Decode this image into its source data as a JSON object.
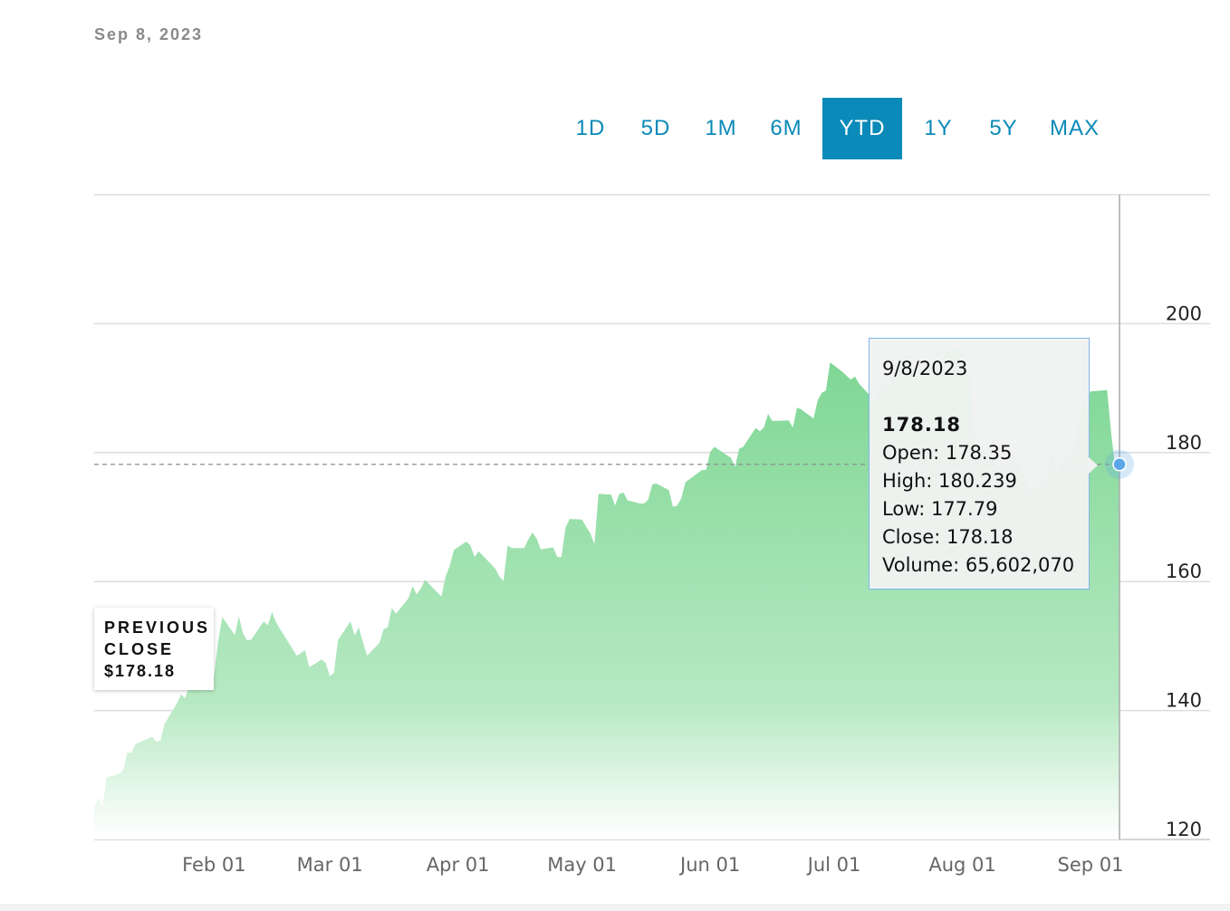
{
  "header": {
    "date": "Sep 8, 2023"
  },
  "ranges": [
    {
      "label": "1D",
      "active": false
    },
    {
      "label": "5D",
      "active": false
    },
    {
      "label": "1M",
      "active": false
    },
    {
      "label": "6M",
      "active": false
    },
    {
      "label": "YTD",
      "active": true
    },
    {
      "label": "1Y",
      "active": false
    },
    {
      "label": "5Y",
      "active": false
    },
    {
      "label": "MAX",
      "active": false
    }
  ],
  "tooltip": {
    "date": "9/8/2023",
    "price": "178.18",
    "open": "Open: 178.35",
    "high": "High: 180.239",
    "low": "Low: 177.79",
    "close": "Close: 178.18",
    "volume": "Volume: 65,602,070"
  },
  "previous_close": {
    "line1": "PREVIOUS",
    "line2": "CLOSE",
    "value": "$178.18"
  },
  "colors": {
    "accent": "#0a8ab8",
    "area_top": "#7dd693",
    "area_bottom": "#ffffff",
    "marker": "#5aa6e8"
  },
  "chart_data": {
    "type": "area",
    "ylim": [
      120,
      220
    ],
    "y_ticks": [
      120,
      140,
      160,
      180,
      200
    ],
    "x_ticks": [
      {
        "label": "Feb 01",
        "date": "2023-02-01"
      },
      {
        "label": "Mar 01",
        "date": "2023-03-01"
      },
      {
        "label": "Apr 01",
        "date": "2023-04-01"
      },
      {
        "label": "May 01",
        "date": "2023-05-01"
      },
      {
        "label": "Jun 01",
        "date": "2023-06-01"
      },
      {
        "label": "Jul 01",
        "date": "2023-07-01"
      },
      {
        "label": "Aug 01",
        "date": "2023-08-01"
      },
      {
        "label": "Sep 01",
        "date": "2023-09-01"
      }
    ],
    "previous_close": 178.18,
    "grid": true,
    "series": [
      {
        "points": [
          [
            "2023-01-03",
            125.1
          ],
          [
            "2023-01-04",
            126.4
          ],
          [
            "2023-01-05",
            125.0
          ],
          [
            "2023-01-06",
            129.6
          ],
          [
            "2023-01-09",
            130.2
          ],
          [
            "2023-01-10",
            130.7
          ],
          [
            "2023-01-11",
            133.5
          ],
          [
            "2023-01-12",
            133.4
          ],
          [
            "2023-01-13",
            134.8
          ],
          [
            "2023-01-17",
            135.9
          ],
          [
            "2023-01-18",
            135.2
          ],
          [
            "2023-01-19",
            135.3
          ],
          [
            "2023-01-20",
            137.9
          ],
          [
            "2023-01-23",
            141.1
          ],
          [
            "2023-01-24",
            142.5
          ],
          [
            "2023-01-25",
            141.9
          ],
          [
            "2023-01-26",
            143.9
          ],
          [
            "2023-01-27",
            145.9
          ],
          [
            "2023-01-30",
            143.0
          ],
          [
            "2023-01-31",
            144.3
          ],
          [
            "2023-02-01",
            145.4
          ],
          [
            "2023-02-02",
            150.8
          ],
          [
            "2023-02-03",
            154.5
          ],
          [
            "2023-02-06",
            151.7
          ],
          [
            "2023-02-07",
            154.6
          ],
          [
            "2023-02-08",
            151.9
          ],
          [
            "2023-02-09",
            150.9
          ],
          [
            "2023-02-10",
            151.0
          ],
          [
            "2023-02-13",
            153.8
          ],
          [
            "2023-02-14",
            153.2
          ],
          [
            "2023-02-15",
            155.3
          ],
          [
            "2023-02-16",
            153.7
          ],
          [
            "2023-02-17",
            152.6
          ],
          [
            "2023-02-21",
            148.5
          ],
          [
            "2023-02-22",
            148.9
          ],
          [
            "2023-02-23",
            149.4
          ],
          [
            "2023-02-24",
            146.7
          ],
          [
            "2023-02-27",
            147.9
          ],
          [
            "2023-02-28",
            147.4
          ],
          [
            "2023-03-01",
            145.3
          ],
          [
            "2023-03-02",
            145.9
          ],
          [
            "2023-03-03",
            151.0
          ],
          [
            "2023-03-06",
            153.8
          ],
          [
            "2023-03-07",
            151.6
          ],
          [
            "2023-03-08",
            152.9
          ],
          [
            "2023-03-09",
            150.6
          ],
          [
            "2023-03-10",
            148.5
          ],
          [
            "2023-03-13",
            150.5
          ],
          [
            "2023-03-14",
            152.6
          ],
          [
            "2023-03-15",
            152.9
          ],
          [
            "2023-03-16",
            155.9
          ],
          [
            "2023-03-17",
            155.0
          ],
          [
            "2023-03-20",
            157.4
          ],
          [
            "2023-03-21",
            159.3
          ],
          [
            "2023-03-22",
            158.0
          ],
          [
            "2023-03-23",
            158.9
          ],
          [
            "2023-03-24",
            160.3
          ],
          [
            "2023-03-27",
            158.3
          ],
          [
            "2023-03-28",
            157.7
          ],
          [
            "2023-03-29",
            160.8
          ],
          [
            "2023-03-30",
            162.4
          ],
          [
            "2023-03-31",
            164.9
          ],
          [
            "2023-04-03",
            166.2
          ],
          [
            "2023-04-04",
            165.6
          ],
          [
            "2023-04-05",
            163.8
          ],
          [
            "2023-04-06",
            164.7
          ],
          [
            "2023-04-10",
            162.0
          ],
          [
            "2023-04-11",
            160.8
          ],
          [
            "2023-04-12",
            160.1
          ],
          [
            "2023-04-13",
            165.6
          ],
          [
            "2023-04-14",
            165.2
          ],
          [
            "2023-04-17",
            165.2
          ],
          [
            "2023-04-18",
            166.5
          ],
          [
            "2023-04-19",
            167.6
          ],
          [
            "2023-04-20",
            166.7
          ],
          [
            "2023-04-21",
            165.0
          ],
          [
            "2023-04-24",
            165.3
          ],
          [
            "2023-04-25",
            163.8
          ],
          [
            "2023-04-26",
            163.8
          ],
          [
            "2023-04-27",
            168.4
          ],
          [
            "2023-04-28",
            169.7
          ],
          [
            "2023-05-01",
            169.6
          ],
          [
            "2023-05-02",
            168.5
          ],
          [
            "2023-05-03",
            167.5
          ],
          [
            "2023-05-04",
            165.8
          ],
          [
            "2023-05-05",
            173.6
          ],
          [
            "2023-05-08",
            173.5
          ],
          [
            "2023-05-09",
            171.8
          ],
          [
            "2023-05-10",
            173.6
          ],
          [
            "2023-05-11",
            173.8
          ],
          [
            "2023-05-12",
            172.6
          ],
          [
            "2023-05-15",
            172.1
          ],
          [
            "2023-05-16",
            172.1
          ],
          [
            "2023-05-17",
            172.7
          ],
          [
            "2023-05-18",
            175.1
          ],
          [
            "2023-05-19",
            175.2
          ],
          [
            "2023-05-22",
            174.2
          ],
          [
            "2023-05-23",
            171.6
          ],
          [
            "2023-05-24",
            171.8
          ],
          [
            "2023-05-25",
            172.9
          ],
          [
            "2023-05-26",
            175.4
          ],
          [
            "2023-05-30",
            177.3
          ],
          [
            "2023-05-31",
            177.3
          ],
          [
            "2023-06-01",
            180.1
          ],
          [
            "2023-06-02",
            180.9
          ],
          [
            "2023-06-05",
            179.6
          ],
          [
            "2023-06-06",
            179.2
          ],
          [
            "2023-06-07",
            177.8
          ],
          [
            "2023-06-08",
            180.6
          ],
          [
            "2023-06-09",
            180.9
          ],
          [
            "2023-06-12",
            183.8
          ],
          [
            "2023-06-13",
            183.3
          ],
          [
            "2023-06-14",
            183.9
          ],
          [
            "2023-06-15",
            186.0
          ],
          [
            "2023-06-16",
            184.9
          ],
          [
            "2023-06-20",
            185.0
          ],
          [
            "2023-06-21",
            183.9
          ],
          [
            "2023-06-22",
            187.0
          ],
          [
            "2023-06-23",
            186.7
          ],
          [
            "2023-06-26",
            185.3
          ],
          [
            "2023-06-27",
            188.1
          ],
          [
            "2023-06-28",
            189.3
          ],
          [
            "2023-06-29",
            189.6
          ],
          [
            "2023-06-30",
            194.0
          ],
          [
            "2023-07-03",
            192.5
          ],
          [
            "2023-07-05",
            191.3
          ],
          [
            "2023-07-06",
            191.8
          ],
          [
            "2023-07-07",
            190.7
          ],
          [
            "2023-07-10",
            188.6
          ],
          [
            "2023-07-11",
            188.1
          ],
          [
            "2023-07-12",
            189.8
          ],
          [
            "2023-07-13",
            190.5
          ],
          [
            "2023-07-14",
            190.7
          ],
          [
            "2023-07-17",
            193.99
          ],
          [
            "2023-07-18",
            193.7
          ],
          [
            "2023-07-19",
            195.1
          ],
          [
            "2023-07-20",
            193.1
          ],
          [
            "2023-07-21",
            191.9
          ],
          [
            "2023-07-24",
            192.8
          ],
          [
            "2023-07-25",
            193.6
          ],
          [
            "2023-07-26",
            194.5
          ],
          [
            "2023-07-27",
            193.2
          ],
          [
            "2023-07-28",
            195.8
          ],
          [
            "2023-07-31",
            196.4
          ],
          [
            "2023-08-01",
            195.6
          ],
          [
            "2023-08-02",
            192.6
          ],
          [
            "2023-08-03",
            191.2
          ],
          [
            "2023-08-04",
            181.99
          ],
          [
            "2023-08-07",
            178.9
          ],
          [
            "2023-08-08",
            179.8
          ],
          [
            "2023-08-09",
            177.97
          ],
          [
            "2023-08-10",
            177.8
          ],
          [
            "2023-08-11",
            177.8
          ],
          [
            "2023-08-14",
            179.5
          ],
          [
            "2023-08-15",
            177.5
          ],
          [
            "2023-08-16",
            176.6
          ],
          [
            "2023-08-17",
            174.0
          ],
          [
            "2023-08-18",
            174.5
          ],
          [
            "2023-08-21",
            175.8
          ],
          [
            "2023-08-22",
            177.2
          ],
          [
            "2023-08-23",
            181.1
          ],
          [
            "2023-08-24",
            176.4
          ],
          [
            "2023-08-25",
            178.6
          ],
          [
            "2023-08-28",
            180.2
          ],
          [
            "2023-08-29",
            184.1
          ],
          [
            "2023-08-30",
            187.7
          ],
          [
            "2023-08-31",
            187.9
          ],
          [
            "2023-09-01",
            189.5
          ],
          [
            "2023-09-05",
            189.7
          ],
          [
            "2023-09-06",
            182.9
          ],
          [
            "2023-09-07",
            177.6
          ],
          [
            "2023-09-08",
            178.18
          ]
        ]
      }
    ]
  }
}
